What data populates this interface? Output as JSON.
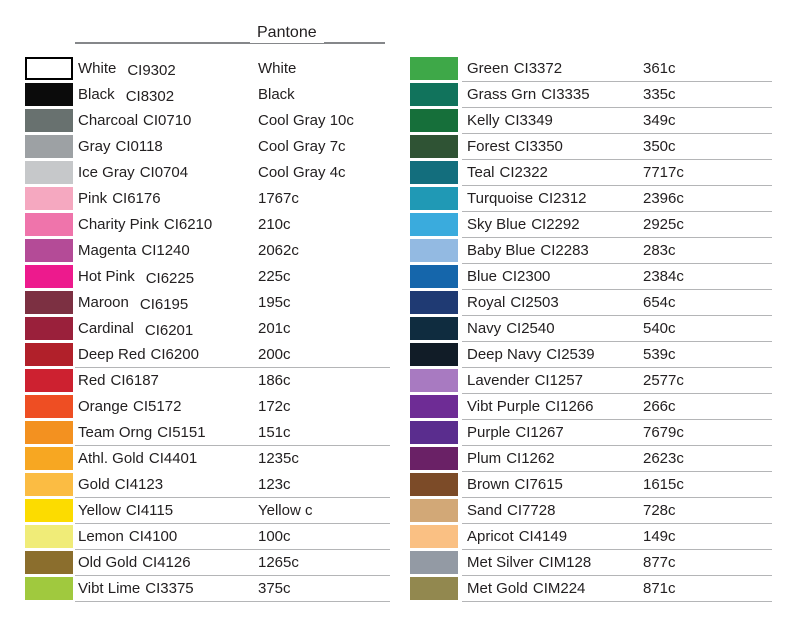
{
  "page": {
    "background": "#ffffff",
    "text_color": "#232021",
    "rule_color": "#85878a",
    "row_line_color": "#b4b5b7"
  },
  "header": {
    "title": "Pantone"
  },
  "left_column": {
    "rows": [
      {
        "name": "White",
        "code": "CI9302",
        "pantone": "White",
        "hex": "#ffffff",
        "border_hex": "#000000",
        "drop_code": true
      },
      {
        "name": "Black",
        "code": "CI8302",
        "pantone": "Black",
        "hex": "#0b0b0b",
        "drop_code": true
      },
      {
        "name": "Charcoal",
        "code": "CI0710",
        "pantone": "Cool Gray 10c",
        "hex": "#68716f"
      },
      {
        "name": "Gray",
        "code": "CI0118",
        "pantone": "Cool Gray 7c",
        "hex": "#9da1a4"
      },
      {
        "name": "Ice Gray",
        "code": "CI0704",
        "pantone": "Cool Gray 4c",
        "hex": "#c6c8ca"
      },
      {
        "name": "Pink",
        "code": "CI6176",
        "pantone": "1767c",
        "hex": "#f5a8c0"
      },
      {
        "name": "Charity Pink",
        "code": "CI6210",
        "pantone": "210c",
        "hex": "#ef74ab"
      },
      {
        "name": "Magenta",
        "code": "CI1240",
        "pantone": "2062c",
        "hex": "#b44b97"
      },
      {
        "name": "Hot Pink",
        "code": "CI6225",
        "pantone": "225c",
        "hex": "#ed1a8d",
        "drop_code": true
      },
      {
        "name": "Maroon",
        "code": "CI6195",
        "pantone": "195c",
        "hex": "#7c3042",
        "drop_code": true
      },
      {
        "name": "Cardinal",
        "code": "CI6201",
        "pantone": "201c",
        "hex": "#9a203b",
        "drop_code": true
      },
      {
        "name": "Deep Red",
        "code": "CI6200",
        "pantone": "200c",
        "hex": "#b1202a",
        "underline": true
      },
      {
        "name": "Red",
        "code": "CI6187",
        "pantone": "186c",
        "hex": "#cd2130"
      },
      {
        "name": "Orange",
        "code": "CI5172",
        "pantone": "172c",
        "hex": "#ee4e23"
      },
      {
        "name": "Team Orng",
        "code": "CI5151",
        "pantone": "151c",
        "hex": "#f39120",
        "underline": true
      },
      {
        "name": "Athl. Gold",
        "code": "CI4401",
        "pantone": "1235c",
        "hex": "#f7a722"
      },
      {
        "name": "Gold",
        "code": "CI4123",
        "pantone": "123c",
        "hex": "#fbbc43",
        "underline": true
      },
      {
        "name": "Yellow",
        "code": "CI4115",
        "pantone": "Yellow c",
        "hex": "#fcdc00",
        "underline": true
      },
      {
        "name": "Lemon",
        "code": "CI4100",
        "pantone": "100c",
        "hex": "#f0ec78",
        "underline": true
      },
      {
        "name": "Old Gold",
        "code": "CI4126",
        "pantone": "1265c",
        "hex": "#8b6e2d",
        "underline": true
      },
      {
        "name": "Vibt Lime",
        "code": "CI3375",
        "pantone": "375c",
        "hex": "#a0c93e",
        "underline": true
      }
    ]
  },
  "right_column": {
    "rows": [
      {
        "name": "Green",
        "code": "CI3372",
        "pantone": "361c",
        "hex": "#3ea848",
        "underline": true
      },
      {
        "name": "Grass Grn",
        "code": "CI3335",
        "pantone": "335c",
        "hex": "#11735c",
        "underline": true
      },
      {
        "name": "Kelly",
        "code": "CI3349",
        "pantone": "349c",
        "hex": "#166f3a",
        "underline": true
      },
      {
        "name": "Forest",
        "code": "CI3350",
        "pantone": "350c",
        "hex": "#2f5334",
        "underline": true
      },
      {
        "name": "Teal",
        "code": "CI2322",
        "pantone": "7717c",
        "hex": "#136e7d",
        "underline": true
      },
      {
        "name": "Turquoise",
        "code": "CI2312",
        "pantone": "2396c",
        "hex": "#2099b5",
        "underline": true
      },
      {
        "name": "Sky Blue",
        "code": "CI2292",
        "pantone": "2925c",
        "hex": "#3aabdd",
        "underline": true
      },
      {
        "name": "Baby Blue",
        "code": "CI2283",
        "pantone": "283c",
        "hex": "#93bae2",
        "underline": true
      },
      {
        "name": "Blue",
        "code": "CI2300",
        "pantone": "2384c",
        "hex": "#1566ab",
        "underline": true
      },
      {
        "name": "Royal",
        "code": "CI2503",
        "pantone": "654c",
        "hex": "#1f3a73",
        "underline": true
      },
      {
        "name": "Navy",
        "code": "CI2540",
        "pantone": "540c",
        "hex": "#0f2c3f",
        "underline": true
      },
      {
        "name": "Deep Navy",
        "code": "CI2539",
        "pantone": "539c",
        "hex": "#111c27",
        "underline": true
      },
      {
        "name": "Lavender",
        "code": "CI1257",
        "pantone": "2577c",
        "hex": "#a87ac1",
        "underline": true
      },
      {
        "name": "Vibt Purple",
        "code": "CI1266",
        "pantone": "266c",
        "hex": "#6e2c95",
        "underline": true
      },
      {
        "name": "Purple",
        "code": "CI1267",
        "pantone": "7679c",
        "hex": "#5a2d8e",
        "underline": true
      },
      {
        "name": "Plum",
        "code": "CI1262",
        "pantone": "2623c",
        "hex": "#6a2166",
        "underline": true
      },
      {
        "name": "Brown",
        "code": "CI7615",
        "pantone": "1615c",
        "hex": "#7c4b28",
        "underline": true
      },
      {
        "name": "Sand",
        "code": "CI7728",
        "pantone": "728c",
        "hex": "#d2a877",
        "underline": true
      },
      {
        "name": "Apricot",
        "code": "CI4149",
        "pantone": "149c",
        "hex": "#fac083",
        "underline": true
      },
      {
        "name": "Met Silver",
        "code": "CIM128",
        "pantone": "877c",
        "hex": "#939aa4",
        "underline": true
      },
      {
        "name": "Met Gold",
        "code": "CIM224",
        "pantone": "871c",
        "hex": "#92884f",
        "underline": true
      }
    ]
  }
}
